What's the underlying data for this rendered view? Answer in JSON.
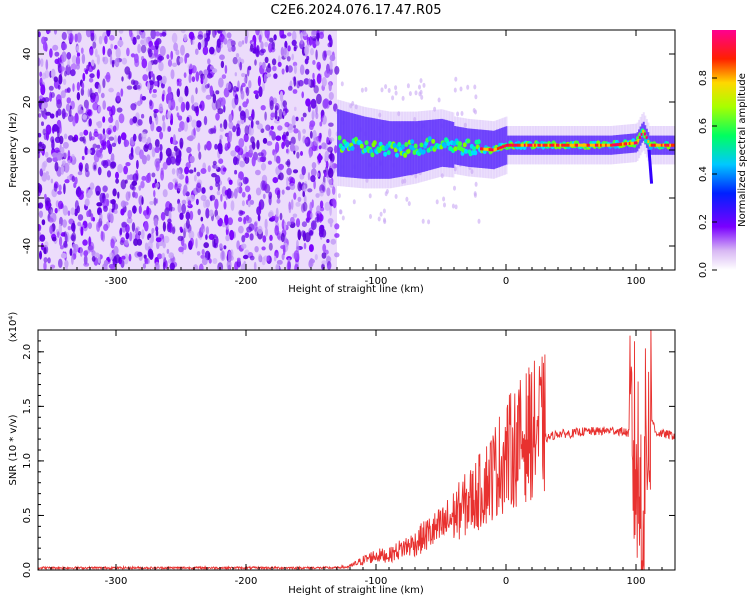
{
  "figure": {
    "title": "C2E6.2024.076.17.47.R05"
  },
  "chart_data": [
    {
      "type": "heatmap",
      "name": "spectrogram",
      "xlabel": "Height of straight line (km)",
      "ylabel": "Frequency (Hz)",
      "xlim": [
        -360,
        130
      ],
      "ylim": [
        -50,
        50
      ],
      "xticks": [
        -300,
        -200,
        -100,
        0,
        100
      ],
      "yticks": [
        -40,
        -20,
        0,
        20,
        40
      ],
      "noise_region_x": [
        -360,
        -130
      ],
      "signal_track": {
        "x": [
          -130,
          -110,
          -90,
          -70,
          -50,
          -30,
          -10,
          0,
          20,
          40,
          60,
          70,
          80,
          100,
          105,
          110,
          120,
          130
        ],
        "y": [
          3,
          1,
          0,
          1,
          3,
          1,
          0,
          2,
          2,
          2,
          2,
          2,
          2,
          3,
          8,
          2,
          2,
          2
        ]
      },
      "colorbar": {
        "label": "Normalized spectral amplitude",
        "ticks": [
          0.0,
          0.2,
          0.4,
          0.6,
          0.8
        ],
        "range": [
          0,
          1
        ]
      }
    },
    {
      "type": "line",
      "name": "snr",
      "xlabel": "Height of straight line (km)",
      "ylabel": "SNR (10 * v/v)",
      "ymultiplier": "(x10⁴)",
      "xlim": [
        -360,
        130
      ],
      "ylim": [
        0,
        2.2
      ],
      "xticks": [
        -300,
        -200,
        -100,
        0,
        100
      ],
      "yticks": [
        0.0,
        0.5,
        1.0,
        1.5,
        2.0
      ],
      "series": [
        {
          "color": "#e8312f",
          "x": [
            -360,
            -300,
            -200,
            -130,
            -120,
            -110,
            -100,
            -90,
            -80,
            -70,
            -60,
            -50,
            -40,
            -30,
            -20,
            -10,
            0,
            10,
            20,
            30,
            40,
            50,
            60,
            70,
            80,
            90,
            95,
            100,
            105,
            110,
            115,
            120,
            130
          ],
          "y": [
            0.01,
            0.01,
            0.01,
            0.01,
            0.03,
            0.08,
            0.12,
            0.12,
            0.18,
            0.22,
            0.3,
            0.35,
            0.45,
            0.55,
            0.65,
            0.8,
            0.95,
            1.05,
            1.15,
            1.2,
            1.25,
            1.25,
            1.27,
            1.27,
            1.28,
            1.27,
            1.25,
            1.0,
            0.5,
            1.5,
            1.26,
            1.25,
            1.23
          ]
        }
      ]
    }
  ]
}
